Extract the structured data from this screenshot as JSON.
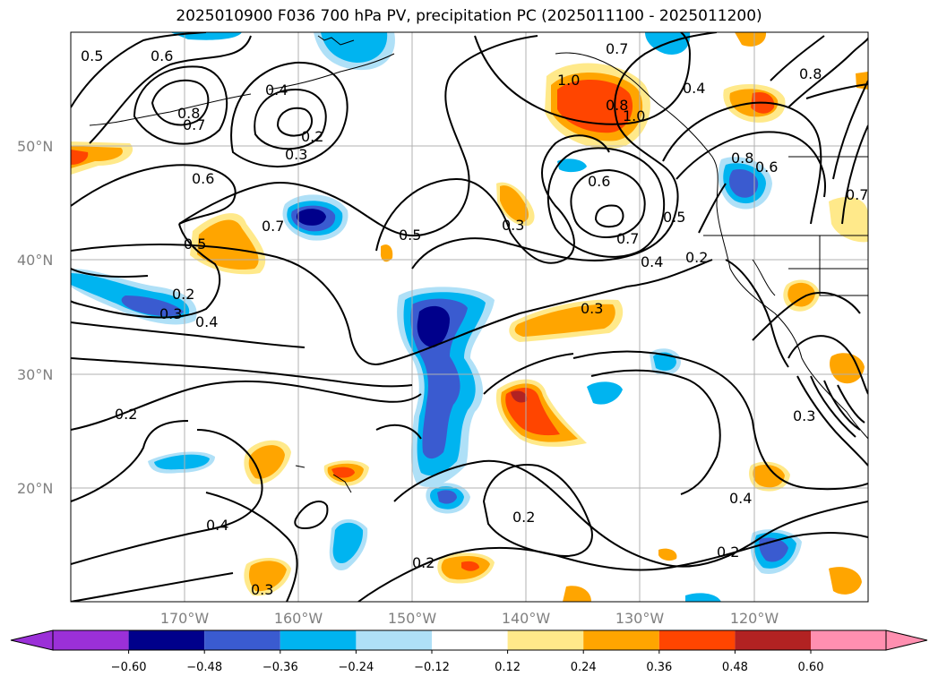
{
  "title": "2025010900 F036 700 hPa PV, precipitation PC (2025011100 - 2025011200)",
  "map": {
    "lat_labels": [
      "50°N",
      "40°N",
      "30°N",
      "20°N"
    ],
    "lon_labels": [
      "170°W",
      "160°W",
      "150°W",
      "140°W",
      "130°W",
      "120°W"
    ],
    "extent": {
      "lon": [
        -180,
        -110
      ],
      "lat": [
        10,
        60
      ]
    }
  },
  "colorbar": {
    "ticks": [
      "−0.60",
      "−0.48",
      "−0.36",
      "−0.24",
      "−0.12",
      "0.12",
      "0.24",
      "0.36",
      "0.48",
      "0.60"
    ],
    "colors": [
      "#9b30d8",
      "#00008b",
      "#3a5bd0",
      "#00b4f0",
      "#afe0f7",
      "#ffffff",
      "#ffe98a",
      "#ffa500",
      "#ff4500",
      "#b22222",
      "#ff8fb0"
    ]
  },
  "contour_labels": [
    "0.5",
    "0.6",
    "0.8",
    "0.7",
    "0.4",
    "0.2",
    "0.3",
    "0.6",
    "0.7",
    "0.5",
    "0.2",
    "0.3",
    "0.4",
    "0.5",
    "0.3",
    "1.0",
    "0.8",
    "1.0",
    "0.7",
    "0.4",
    "0.6",
    "0.7",
    "0.4",
    "0.5",
    "0.2",
    "0.8",
    "0.6",
    "0.7",
    "0.3",
    "0.2",
    "0.4",
    "0.2",
    "0.2",
    "0.2",
    "0.3",
    "0.3",
    "0.4",
    "0.8"
  ]
}
